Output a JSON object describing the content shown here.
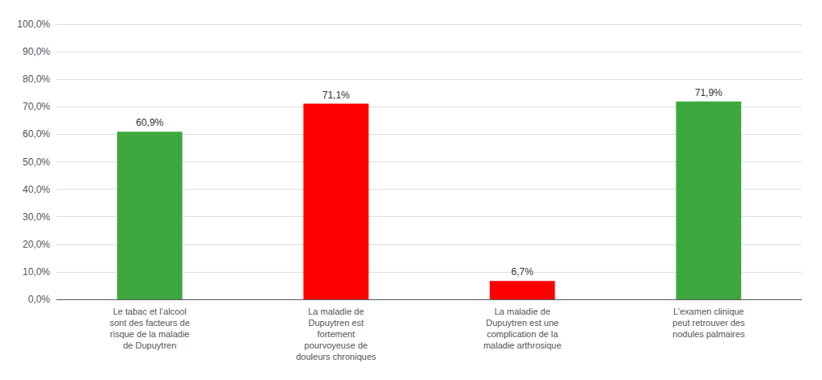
{
  "chart_data": {
    "type": "bar",
    "categories": [
      "Le tabac et l’alcool\nsont des facteurs de\nrisque de la maladie\nde Dupuytren",
      "La maladie de\nDupuytren est\nfortement\npourvoyeuse de\ndouleurs chroniques",
      "La maladie de\nDupuytren est une\ncomplication de la\nmaladie arthrosique",
      "L’examen clinique\npeut retrouver des\nnodules palmaires"
    ],
    "values": [
      60.9,
      71.1,
      6.7,
      71.9
    ],
    "value_labels": [
      "60,9%",
      "71,1%",
      "6,7%",
      "71,9%"
    ],
    "data_labels": true,
    "colors": [
      "#3EA83E",
      "#FF0000",
      "#FF0000",
      "#3EA83E"
    ],
    "ylim": [
      0,
      100
    ],
    "yticks": [
      {
        "value": 0,
        "label": "0,0%"
      },
      {
        "value": 10,
        "label": "10,0%"
      },
      {
        "value": 20,
        "label": "20,0%"
      },
      {
        "value": 30,
        "label": "30,0%"
      },
      {
        "value": 40,
        "label": "40,0%"
      },
      {
        "value": 50,
        "label": "50,0%"
      },
      {
        "value": 60,
        "label": "60,0%"
      },
      {
        "value": 70,
        "label": "70,0%"
      },
      {
        "value": 80,
        "label": "80,0%"
      },
      {
        "value": 90,
        "label": "90,0%"
      },
      {
        "value": 100,
        "label": "100,0%"
      }
    ],
    "grid": true
  }
}
